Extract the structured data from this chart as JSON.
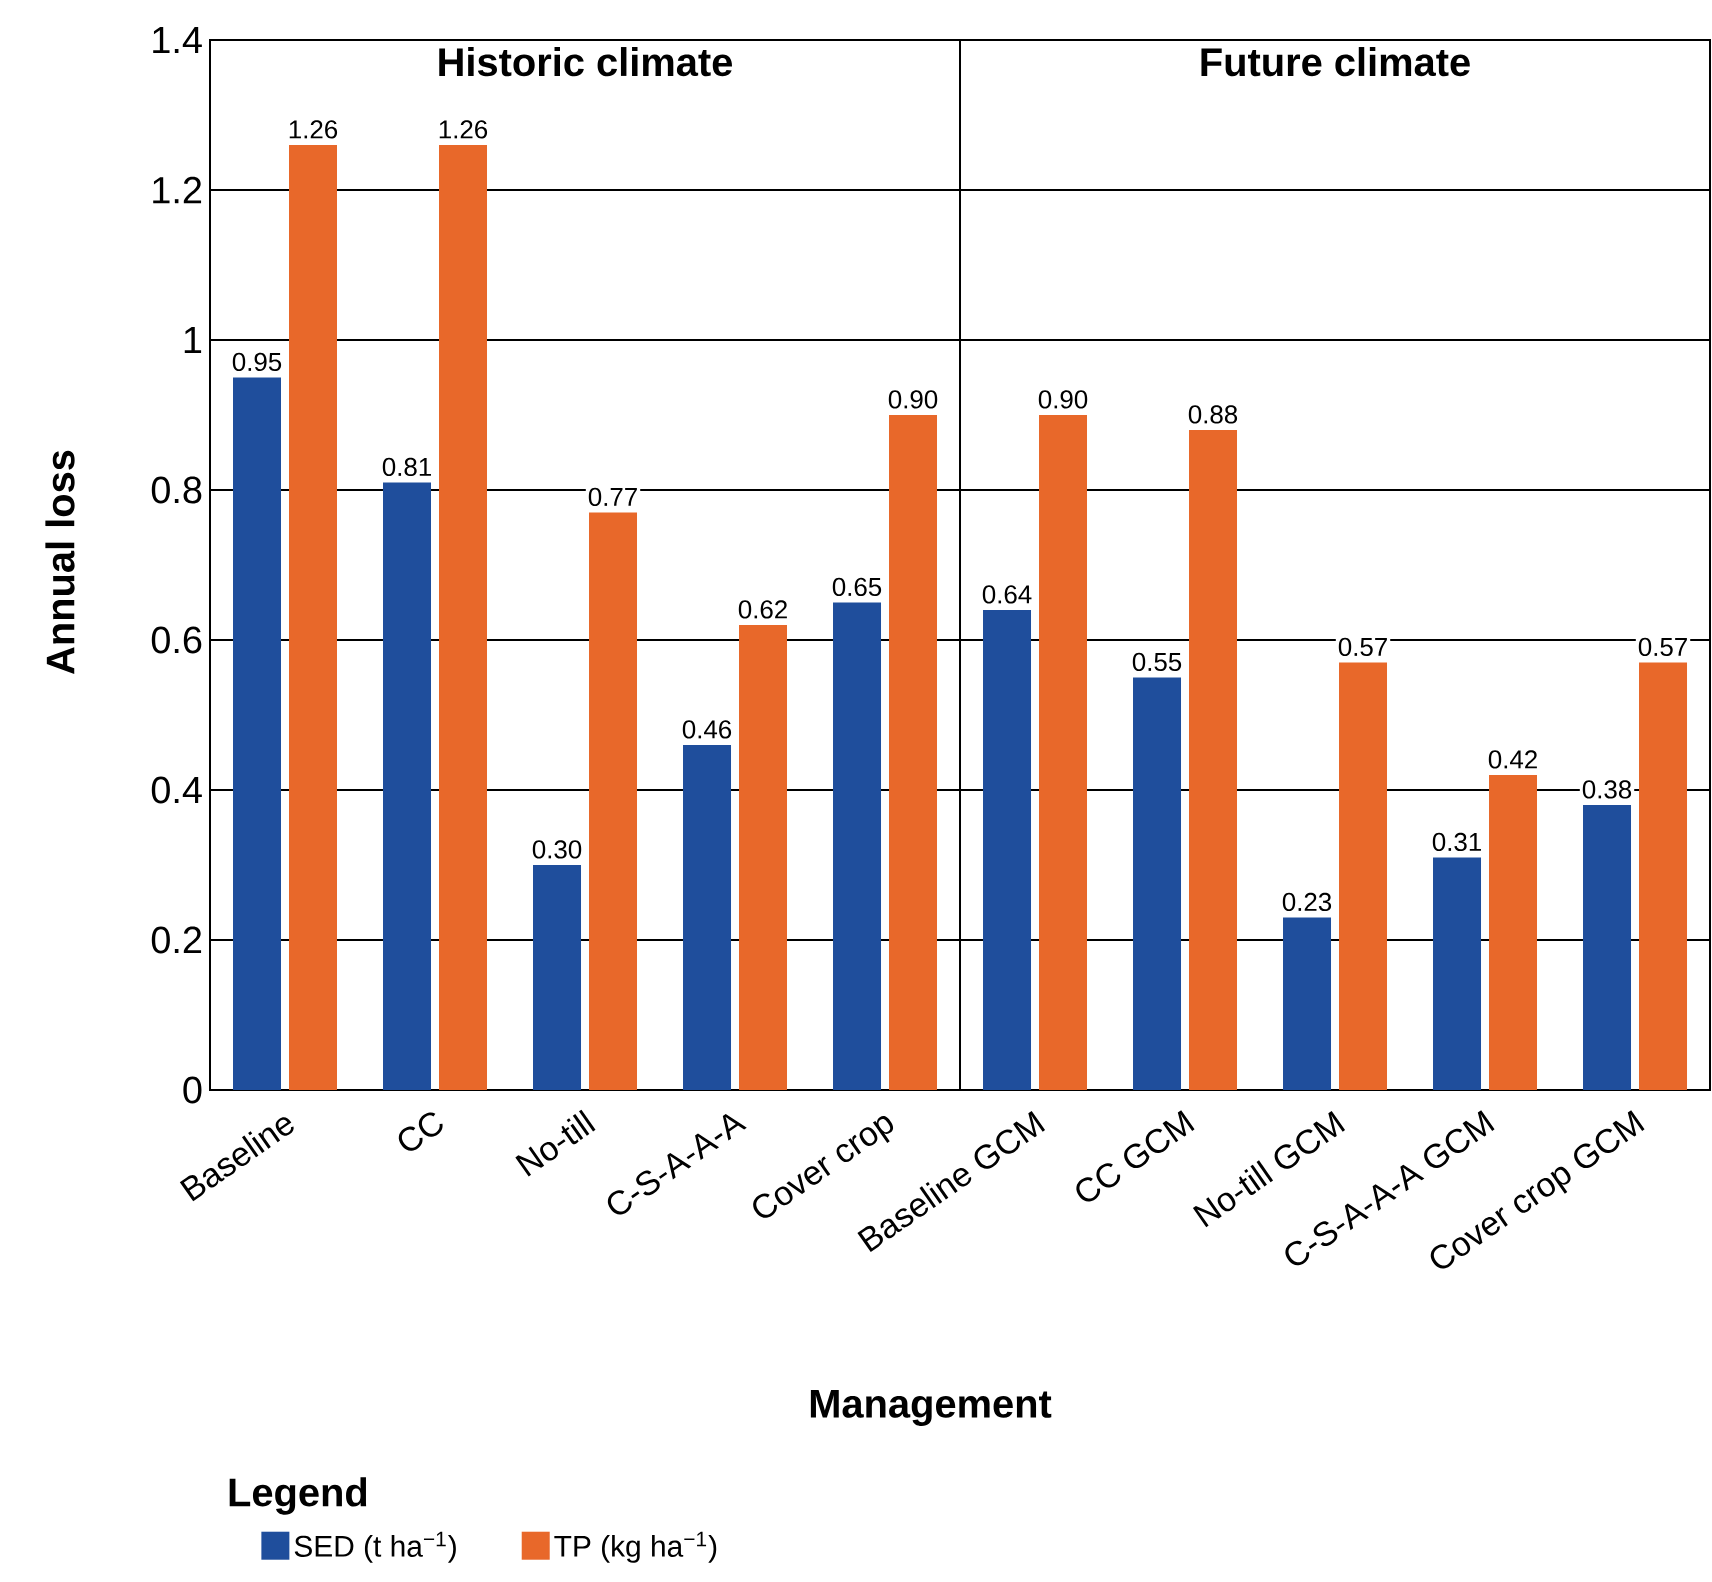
{
  "chart_data": {
    "type": "bar",
    "xlabel": "Management",
    "ylabel": "Annual loss",
    "legend_title": "Legend",
    "categories": [
      "Baseline",
      "CC",
      "No-till",
      "C-S-A-A-A",
      "Cover crop",
      "Baseline GCM",
      "CC GCM",
      "No-till GCM",
      "C-S-A-A-A GCM",
      "Cover crop GCM"
    ],
    "series": [
      {
        "name": "SED (t ha$^{−1}$)",
        "color": "#1f4e9c",
        "values": [
          0.95,
          0.81,
          0.3,
          0.46,
          0.65,
          0.64,
          0.55,
          0.23,
          0.31,
          0.38
        ],
        "value_labels": [
          "0.95",
          "0.81",
          "0.30",
          "0.46",
          "0.65",
          "0.64",
          "0.55",
          "0.23",
          "0.31",
          "0.38"
        ]
      },
      {
        "name": "TP (kg ha$^{−1}$)",
        "color": "#e8682a",
        "values": [
          1.26,
          1.26,
          0.77,
          0.62,
          0.9,
          0.9,
          0.88,
          0.57,
          0.42,
          0.57
        ],
        "value_labels": [
          "1.26",
          "1.26",
          "0.77",
          "0.62",
          "0.90",
          "0.90",
          "0.88",
          "0.57",
          "0.42",
          "0.57"
        ]
      }
    ],
    "ylim": [
      0,
      1.4
    ],
    "yticks": [
      0,
      0.2,
      0.4,
      0.6,
      0.8,
      1,
      1.2,
      1.4
    ],
    "grid": "y",
    "legend": "bottom",
    "annotations": [
      "Historic climate",
      "Future climate"
    ]
  }
}
